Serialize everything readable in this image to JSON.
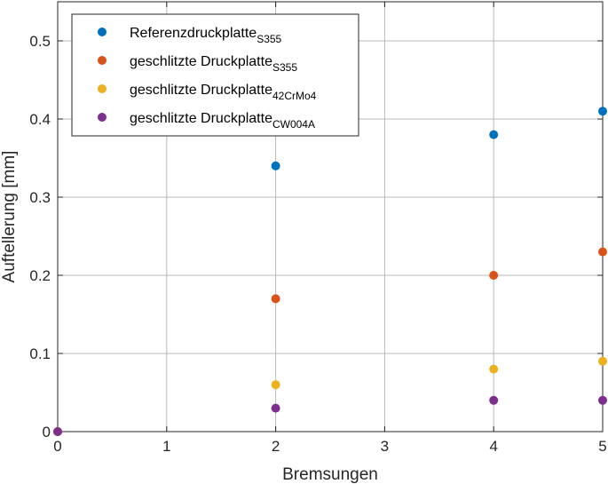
{
  "chart_data": {
    "type": "scatter",
    "xlabel": "Bremsungen",
    "ylabel": "Auftellerung [mm]",
    "xlim": [
      0,
      5
    ],
    "ylim": [
      0,
      0.55
    ],
    "xticks": [
      "0",
      "1",
      "2",
      "3",
      "4",
      "5"
    ],
    "yticks": [
      "0",
      "0.1",
      "0.2",
      "0.3",
      "0.4",
      "0.5"
    ],
    "grid": true,
    "legend_position": "top-left",
    "series": [
      {
        "name": "Referenzdruckplatte",
        "name_subscript": "S355",
        "color": "#0072BD",
        "points": [
          {
            "x": 0,
            "y": 0
          },
          {
            "x": 2,
            "y": 0.34
          },
          {
            "x": 4,
            "y": 0.38
          },
          {
            "x": 5,
            "y": 0.41
          }
        ]
      },
      {
        "name": "geschlitzte Druckplatte",
        "name_subscript": "S355",
        "color": "#D95319",
        "points": [
          {
            "x": 0,
            "y": 0
          },
          {
            "x": 2,
            "y": 0.17
          },
          {
            "x": 4,
            "y": 0.2
          },
          {
            "x": 5,
            "y": 0.23
          }
        ]
      },
      {
        "name": "geschlitzte Druckplatte",
        "name_subscript": "42CrMo4",
        "color": "#EDB120",
        "points": [
          {
            "x": 0,
            "y": 0
          },
          {
            "x": 2,
            "y": 0.06
          },
          {
            "x": 4,
            "y": 0.08
          },
          {
            "x": 5,
            "y": 0.09
          }
        ]
      },
      {
        "name": "geschlitzte Druckplatte",
        "name_subscript": "CW004A",
        "color": "#7E2F8E",
        "points": [
          {
            "x": 0,
            "y": 0
          },
          {
            "x": 2,
            "y": 0.03
          },
          {
            "x": 4,
            "y": 0.04
          },
          {
            "x": 5,
            "y": 0.04
          }
        ]
      }
    ]
  }
}
